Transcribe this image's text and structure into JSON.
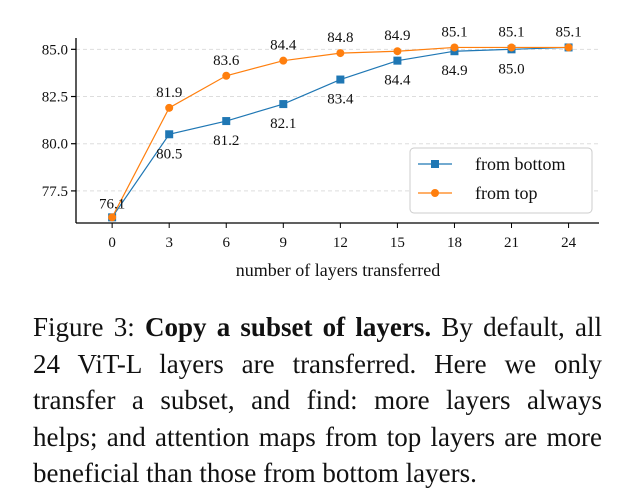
{
  "chart_data": {
    "type": "line",
    "xlabel": "number of layers transferred",
    "ylabel": "",
    "x": [
      0,
      3,
      6,
      9,
      12,
      15,
      18,
      21,
      24
    ],
    "xticks": [
      "0",
      "3",
      "6",
      "9",
      "12",
      "15",
      "18",
      "21",
      "24"
    ],
    "yticks": [
      "77.5",
      "80.0",
      "82.5",
      "85.0"
    ],
    "ylim": [
      75.8,
      85.6
    ],
    "grid": "horizontal dashed",
    "legend_position": "lower-right",
    "series": [
      {
        "name": "from bottom",
        "color": "#1f77b4",
        "marker": "square",
        "values": [
          76.1,
          80.5,
          81.2,
          82.1,
          83.4,
          84.4,
          84.9,
          85.0,
          85.1
        ],
        "labels": [
          "76.1",
          "80.5",
          "81.2",
          "82.1",
          "83.4",
          "84.4",
          "84.9",
          "85.0",
          "85.1"
        ]
      },
      {
        "name": "from top",
        "color": "#ff7f0e",
        "marker": "circle",
        "values": [
          76.1,
          81.9,
          83.6,
          84.4,
          84.8,
          84.9,
          85.1,
          85.1,
          85.1
        ],
        "labels": [
          "76.1",
          "81.9",
          "83.6",
          "84.4",
          "84.8",
          "84.9",
          "85.1",
          "85.1",
          "85.1"
        ]
      }
    ]
  },
  "caption": {
    "prefix": "Figure 3: ",
    "bold": "Copy a subset of layers.",
    "text": " By default, all 24 ViT-L layers are transferred. Here we only transfer a subset, and find: more layers always helps; and attention maps from top layers are more beneficial than those from bottom layers."
  }
}
